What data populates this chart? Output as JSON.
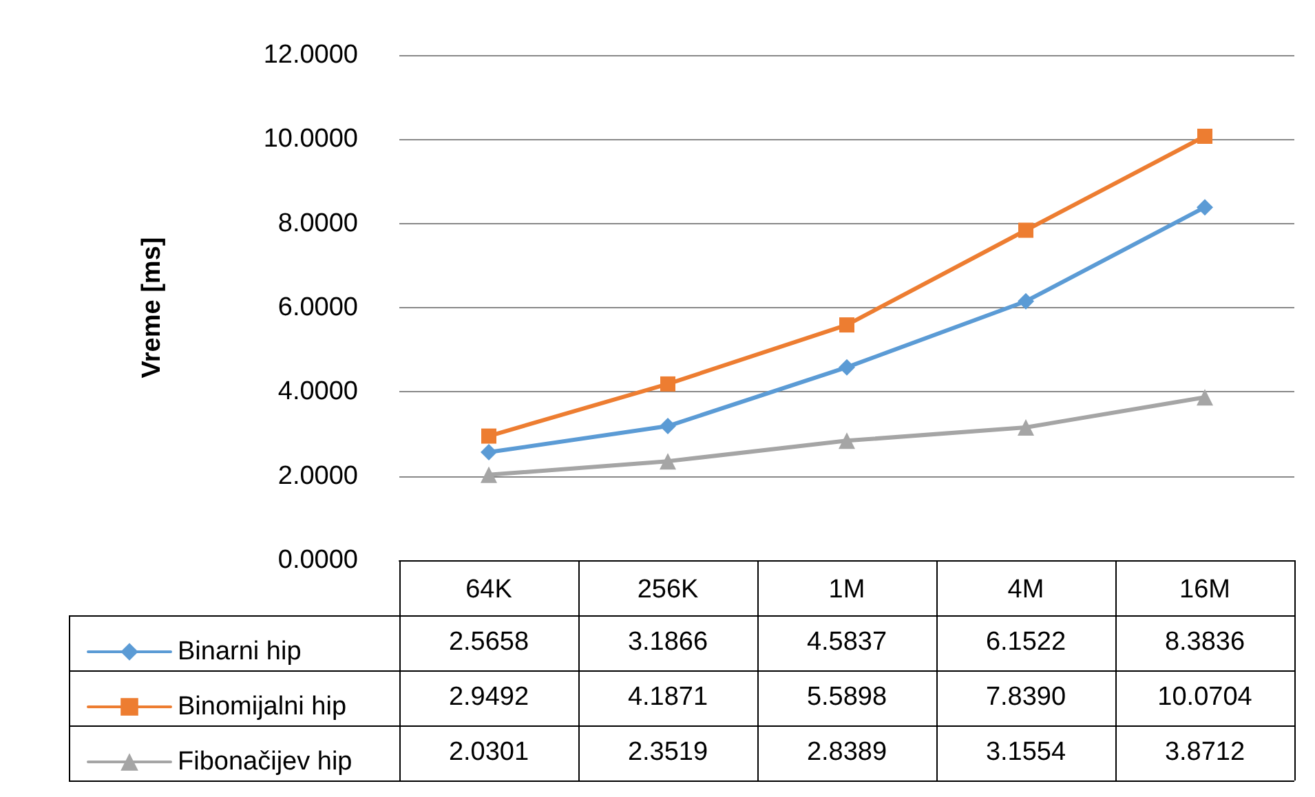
{
  "chart_data": {
    "type": "line",
    "ylabel": "Vreme [ms]",
    "categories": [
      "64K",
      "256K",
      "1M",
      "4M",
      "16M"
    ],
    "ylim": [
      0,
      12
    ],
    "yticks": [
      {
        "value": 0,
        "label": "0.0000"
      },
      {
        "value": 2,
        "label": "2.0000"
      },
      {
        "value": 4,
        "label": "4.0000"
      },
      {
        "value": 6,
        "label": "6.0000"
      },
      {
        "value": 8,
        "label": "8.0000"
      },
      {
        "value": 10,
        "label": "10.0000"
      },
      {
        "value": 12,
        "label": "12.0000"
      }
    ],
    "grid": "y",
    "legend": "bottom left",
    "series": [
      {
        "name": "Binarni hip",
        "color": "#5b9bd5",
        "marker": "diamond",
        "values": [
          2.5658,
          3.1866,
          4.5837,
          6.1522,
          8.3836
        ],
        "value_labels": [
          "2.5658",
          "3.1866",
          "4.5837",
          "6.1522",
          "8.3836"
        ]
      },
      {
        "name": "Binomijalni hip",
        "color": "#ed7d31",
        "marker": "square",
        "values": [
          2.9492,
          4.1871,
          5.5898,
          7.839,
          10.0704
        ],
        "value_labels": [
          "2.9492",
          "4.1871",
          "5.5898",
          "7.8390",
          "10.0704"
        ]
      },
      {
        "name": "Fibonačijev hip",
        "color": "#a5a5a5",
        "marker": "triangle",
        "values": [
          2.0301,
          2.3519,
          2.8389,
          3.1554,
          3.8712
        ],
        "value_labels": [
          "2.0301",
          "2.3519",
          "2.8389",
          "3.1554",
          "3.8712"
        ]
      }
    ]
  }
}
